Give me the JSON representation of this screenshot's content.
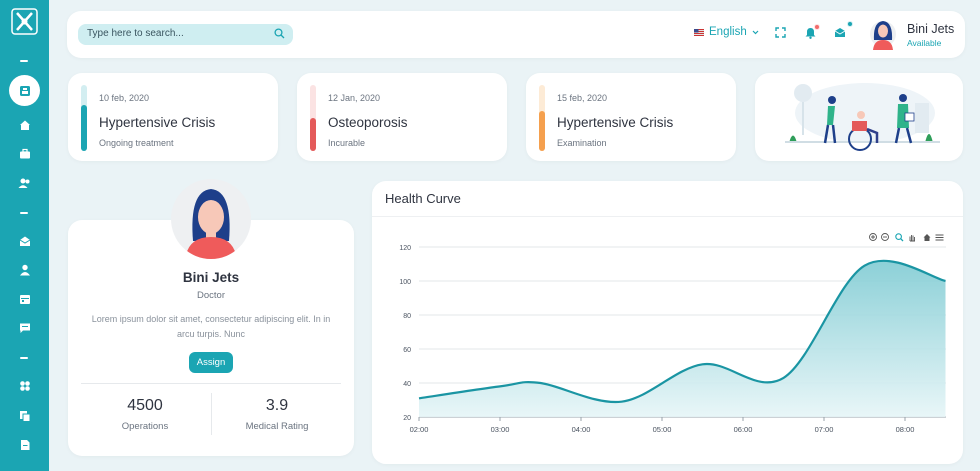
{
  "sidebar": {
    "logo_icon": "x-cross-logo-icon",
    "items": [
      {
        "icon": "dashboard-icon"
      },
      {
        "icon": "home-icon"
      },
      {
        "icon": "briefcase-icon"
      },
      {
        "icon": "users-icon"
      },
      {
        "icon": "mail-open-icon"
      },
      {
        "icon": "user-icon"
      },
      {
        "icon": "calendar-icon"
      },
      {
        "icon": "chat-icon"
      },
      {
        "icon": "apps-icon"
      },
      {
        "icon": "copy-icon"
      },
      {
        "icon": "document-icon"
      }
    ]
  },
  "header": {
    "search_placeholder": "Type here to search...",
    "language": "English",
    "user_name": "Bini Jets",
    "user_status": "Available"
  },
  "cards": [
    {
      "date": "10 feb, 2020",
      "title": "Hypertensive Crisis",
      "subtitle": "Ongoing treatment",
      "color": "#1ba5b3",
      "track": "#d3eef1",
      "level": 0.7
    },
    {
      "date": "12 Jan, 2020",
      "title": "Osteoporosis",
      "subtitle": "Incurable",
      "color": "#e45a5a",
      "track": "#fbe3e3",
      "level": 0.5
    },
    {
      "date": "15 feb, 2020",
      "title": "Hypertensive Crisis",
      "subtitle": "Examination",
      "color": "#f5a04e",
      "track": "#fdebd6",
      "level": 0.6
    }
  ],
  "profile": {
    "name": "Bini Jets",
    "role": "Doctor",
    "description": "Lorem ipsum dolor sit amet, consectetur adipiscing elit. In in arcu turpis. Nunc",
    "button": "Assign",
    "stats": [
      {
        "value": "4500",
        "label": "Operations"
      },
      {
        "value": "3.9",
        "label": "Medical Rating"
      }
    ]
  },
  "chart_title": "Health Curve",
  "chart_data": {
    "type": "area",
    "title": "Health Curve",
    "x": [
      "02:00",
      "03:00",
      "04:00",
      "05:00",
      "06:00",
      "07:00",
      "08:00"
    ],
    "points": [
      {
        "t": "02:00",
        "v": 31
      },
      {
        "t": "03:00",
        "v": 38
      },
      {
        "t": "03:30",
        "v": 40
      },
      {
        "t": "04:30",
        "v": 29
      },
      {
        "t": "05:30",
        "v": 51
      },
      {
        "t": "06:30",
        "v": 43
      },
      {
        "t": "07:30",
        "v": 109
      },
      {
        "t": "08:30",
        "v": 100
      }
    ],
    "yticks": [
      20,
      40,
      60,
      80,
      100,
      120
    ],
    "ylim": [
      20,
      120
    ],
    "grid": true,
    "colors": {
      "line": "#1a95a3",
      "fill_top": "#7fcbd3",
      "fill_bottom": "#e6f5f7"
    },
    "toolbar_icons": [
      "zoom-in-icon",
      "zoom-out-icon",
      "magnifier-icon",
      "pan-hand-icon",
      "reset-home-icon",
      "menu-icon"
    ]
  }
}
